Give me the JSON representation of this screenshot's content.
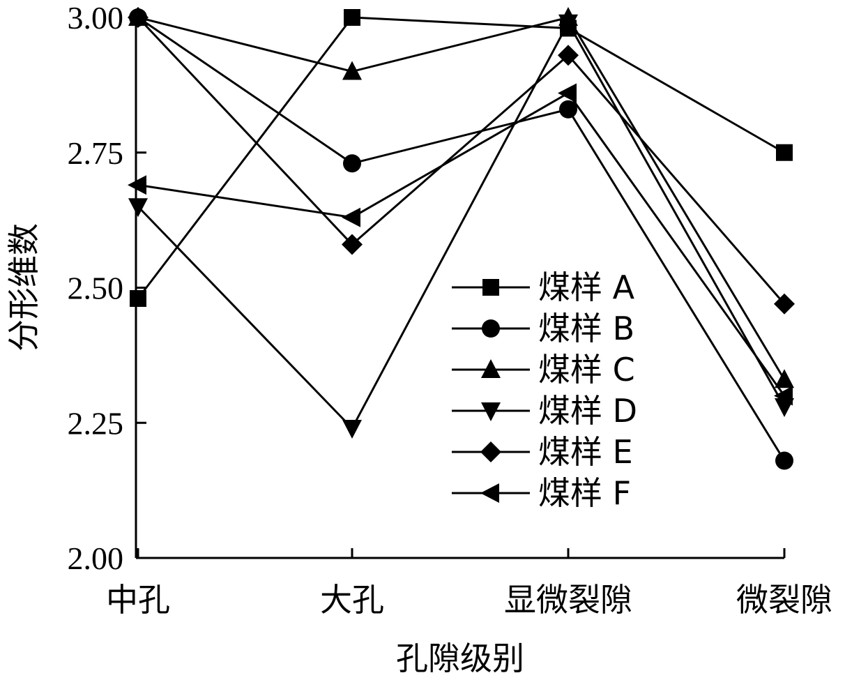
{
  "chart_data": {
    "type": "line",
    "categories": [
      "中孔",
      "大孔",
      "显微裂隙",
      "微裂隙"
    ],
    "xlabel": "孔隙级别",
    "ylabel": "分形维数",
    "ylim": [
      2.0,
      3.0
    ],
    "yticks": [
      "2.00",
      "2.25",
      "2.50",
      "2.75",
      "3.00"
    ],
    "legend_position": "center-right",
    "series": [
      {
        "name": "煤样 A",
        "marker": "square",
        "values": [
          2.48,
          3.0,
          2.98,
          2.75
        ]
      },
      {
        "name": "煤样 B",
        "marker": "circle",
        "values": [
          3.0,
          2.73,
          2.83,
          2.18
        ]
      },
      {
        "name": "煤样 C",
        "marker": "triangle-up",
        "values": [
          3.0,
          2.9,
          3.0,
          2.33
        ]
      },
      {
        "name": "煤样 D",
        "marker": "triangle-down",
        "values": [
          2.65,
          2.24,
          2.99,
          2.28
        ]
      },
      {
        "name": "煤样 E",
        "marker": "diamond",
        "values": [
          3.0,
          2.58,
          2.93,
          2.47
        ]
      },
      {
        "name": "煤样 F",
        "marker": "triangle-left",
        "values": [
          2.69,
          2.63,
          2.86,
          2.3
        ]
      }
    ]
  }
}
